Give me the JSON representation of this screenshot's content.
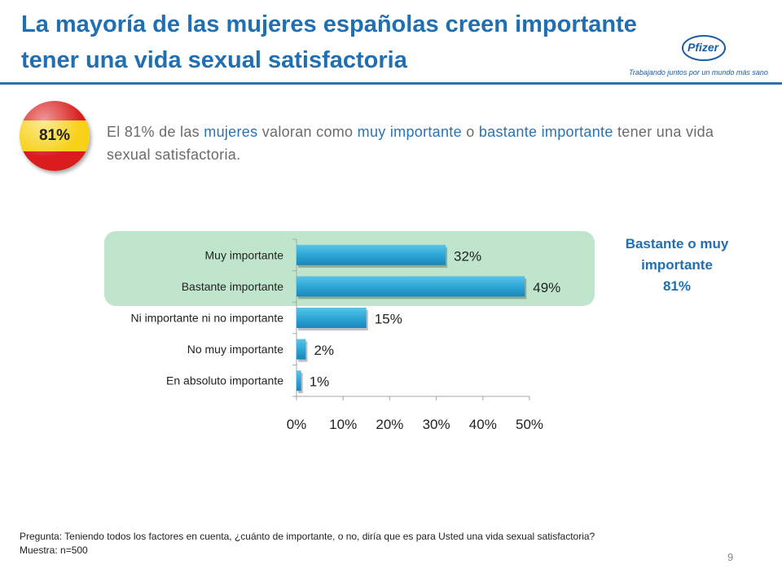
{
  "title": "La mayoría de las mujeres españolas creen importante tener una vida sexual satisfactoria",
  "logo": {
    "wordmark": "Pfizer",
    "tagline": "Trabajando juntos por un mundo más sano"
  },
  "badge": {
    "label": "81%"
  },
  "intro": {
    "part1": "El 81% de las ",
    "part2": "mujeres",
    "part3": " valoran como ",
    "part4": "muy importante",
    "part5": " o ",
    "part6": "bastante importante",
    "part7": " tener una vida sexual satisfactoria."
  },
  "side_note": {
    "line1": "Bastante o muy",
    "line2": "importante",
    "line3": "81%"
  },
  "chart_data": {
    "type": "bar",
    "orientation": "horizontal",
    "categories": [
      "Muy importante",
      "Bastante importante",
      "Ni importante ni no importante",
      "No muy importante",
      "En absoluto importante"
    ],
    "values": [
      32,
      49,
      15,
      2,
      1
    ],
    "value_labels": [
      "32%",
      "49%",
      "15%",
      "2%",
      "1%"
    ],
    "xlim": [
      0,
      50
    ],
    "ticks": [
      0,
      10,
      20,
      30,
      40,
      50
    ],
    "tick_labels": [
      "0%",
      "10%",
      "20%",
      "30%",
      "40%",
      "50%"
    ],
    "bar_color": "#2ea7d6",
    "highlight_color": "#bfe6cd",
    "grid": false
  },
  "footnote": {
    "question": "Pregunta: Teniendo todos los factores en cuenta, ¿cuánto de importante, o no, diría que es para Usted una vida sexual satisfactoria?",
    "sample": "Muestra: n=500"
  },
  "page_number": "9"
}
